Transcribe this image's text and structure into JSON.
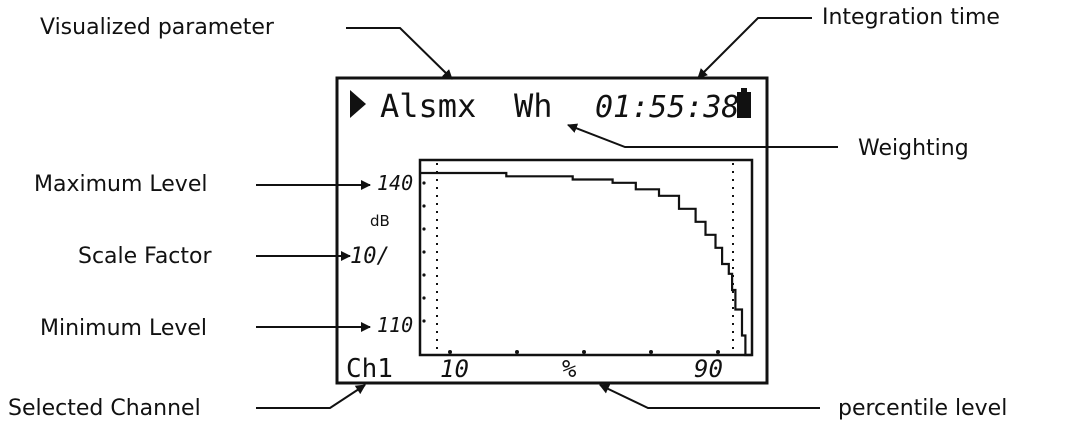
{
  "callouts": {
    "visualized_parameter": "Visualized parameter",
    "integration_time": "Integration time",
    "weighting": "Weighting",
    "maximum_level": "Maximum Level",
    "scale_factor": "Scale Factor",
    "minimum_level": "Minimum Level",
    "selected_channel": "Selected Channel",
    "percentile_level": "percentile level"
  },
  "display": {
    "play_icon": "play-icon",
    "battery_icon": "battery-icon",
    "parameter": "Alsmx",
    "weighting": "Wh",
    "time": "01:55:38",
    "max_level": "140",
    "unit": "dB",
    "scale_factor": "10/",
    "min_level": "110",
    "channel": "Ch1",
    "x_tick_left": "10",
    "x_axis_symbol": "%",
    "x_tick_right": "90"
  },
  "chart_data": {
    "type": "line",
    "xlabel": "%",
    "ylabel": "dB",
    "xlim": [
      0,
      100
    ],
    "ylim": [
      110,
      140
    ],
    "x_ticks": [
      "10",
      "90"
    ],
    "y_ticks": [
      "110",
      "140"
    ],
    "series": [
      {
        "x": [
          0,
          26,
          26,
          46,
          46,
          58,
          58,
          65,
          65,
          72,
          72,
          78,
          78,
          83,
          83,
          86,
          86,
          89,
          89,
          91,
          91,
          93,
          93,
          94,
          94,
          95,
          95,
          97,
          97,
          98,
          98,
          100
        ],
        "y": [
          138,
          138,
          137.5,
          137.5,
          137,
          137,
          136.5,
          136.5,
          135.5,
          135.5,
          134.5,
          134.5,
          132.5,
          132.5,
          130.5,
          130.5,
          128.5,
          128.5,
          126.5,
          126.5,
          124,
          124,
          122.5,
          122.5,
          120,
          120,
          117,
          117,
          113,
          113,
          110,
          110
        ]
      }
    ]
  },
  "colors": {
    "ink": "#111111",
    "background": "#ffffff"
  }
}
